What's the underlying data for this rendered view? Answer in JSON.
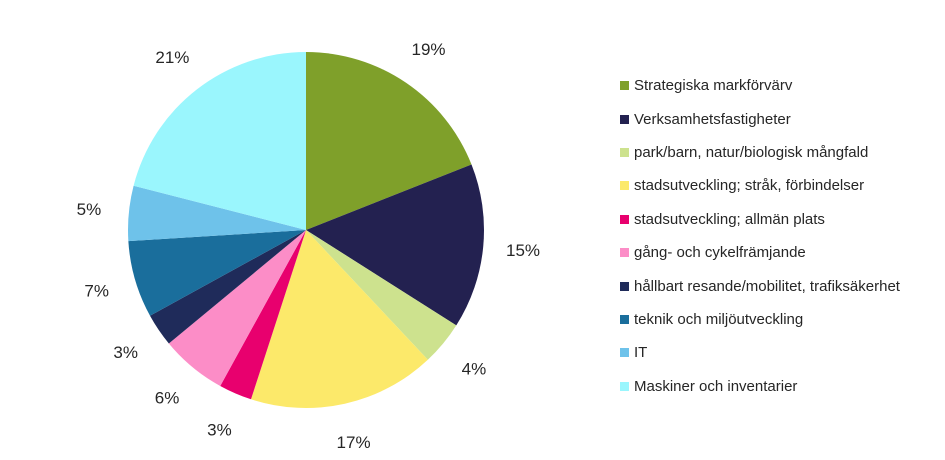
{
  "chart_data": {
    "type": "pie",
    "title": "",
    "legend_position": "right",
    "slices": [
      {
        "label": "Strategiska markförvärv",
        "value": 19,
        "value_label": "19%",
        "color": "#7FA02A"
      },
      {
        "label": "Verksamhetsfastigheter",
        "value": 15,
        "value_label": "15%",
        "color": "#232150"
      },
      {
        "label": "park/barn, natur/biologisk mångfald",
        "value": 4,
        "value_label": "4%",
        "color": "#CDE28E"
      },
      {
        "label": "stadsutveckling; stråk, förbindelser",
        "value": 17,
        "value_label": "17%",
        "color": "#FCE96A"
      },
      {
        "label": "stadsutveckling; allmän plats",
        "value": 3,
        "value_label": "3%",
        "color": "#E8006E"
      },
      {
        "label": "gång- och cykelfrämjande",
        "value": 6,
        "value_label": "6%",
        "color": "#FC8DC7"
      },
      {
        "label": "hållbart resande/mobilitet, trafiksäkerhet",
        "value": 3,
        "value_label": "3%",
        "color": "#1F2B5A"
      },
      {
        "label": "teknik och miljöutveckling",
        "value": 7,
        "value_label": "7%",
        "color": "#1A6E9C"
      },
      {
        "label": "IT",
        "value": 5,
        "value_label": "5%",
        "color": "#6EC2EA"
      },
      {
        "label": "Maskiner och inventarier",
        "value": 21,
        "value_label": "21%",
        "color": "#9AF6FD"
      }
    ]
  }
}
